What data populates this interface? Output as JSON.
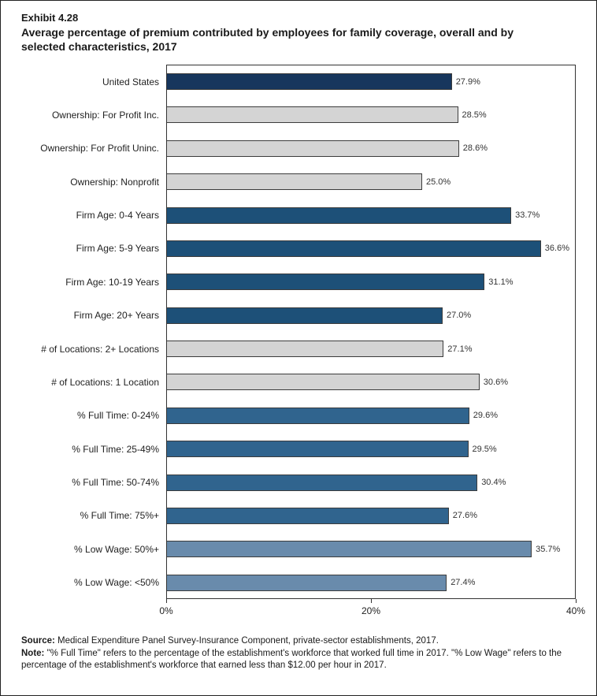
{
  "header": {
    "exhibit": "Exhibit 4.28",
    "title": "Average percentage of premium contributed by employees for family coverage, overall and by selected characteristics, 2017"
  },
  "chart_data": {
    "type": "bar",
    "orientation": "horizontal",
    "title": "Average percentage of premium contributed by employees for family coverage, overall and by selected characteristics, 2017",
    "categories": [
      "United States",
      "Ownership: For Profit Inc.",
      "Ownership: For Profit Uninc.",
      "Ownership: Nonprofit",
      "Firm Age: 0-4 Years",
      "Firm Age: 5-9 Years",
      "Firm Age: 10-19 Years",
      "Firm Age: 20+ Years",
      "# of Locations: 2+ Locations",
      "# of Locations: 1 Location",
      "% Full Time: 0-24%",
      "% Full Time: 25-49%",
      "% Full Time: 50-74%",
      "% Full Time: 75%+",
      "% Low Wage: 50%+",
      "% Low Wage: <50%"
    ],
    "values": [
      27.9,
      28.5,
      28.6,
      25.0,
      33.7,
      36.6,
      31.1,
      27.0,
      27.1,
      30.6,
      29.6,
      29.5,
      30.4,
      27.6,
      35.7,
      27.4
    ],
    "value_labels": [
      "27.9%",
      "28.5%",
      "28.6%",
      "25.0%",
      "33.7%",
      "36.6%",
      "31.1%",
      "27.0%",
      "27.1%",
      "30.6%",
      "29.6%",
      "29.5%",
      "30.4%",
      "27.6%",
      "35.7%",
      "27.4%"
    ],
    "bar_colors": [
      "#17365d",
      "#d4d4d4",
      "#d4d4d4",
      "#d4d4d4",
      "#1d5078",
      "#1d5078",
      "#1d5078",
      "#1d5078",
      "#d4d4d4",
      "#d4d4d4",
      "#30648e",
      "#30648e",
      "#30648e",
      "#30648e",
      "#698bac",
      "#698bac"
    ],
    "bar_border_color": "#3c3c3c",
    "xlim": [
      0,
      40
    ],
    "x_ticks": [
      {
        "value": 0,
        "label": "0%"
      },
      {
        "value": 20,
        "label": "20%"
      },
      {
        "value": 40,
        "label": "40%"
      }
    ],
    "grid": false,
    "legend": "none"
  },
  "footer": {
    "source_label": "Source:",
    "source_text": " Medical Expenditure Panel Survey-Insurance Component, private-sector establishments, 2017.",
    "note_label": "Note:",
    "note_text": " \"% Full Time\" refers to the percentage of the establishment's workforce that worked full time in 2017. \"% Low Wage\" refers to the percentage of the establishment's workforce that earned less than $12.00 per hour in 2017."
  }
}
